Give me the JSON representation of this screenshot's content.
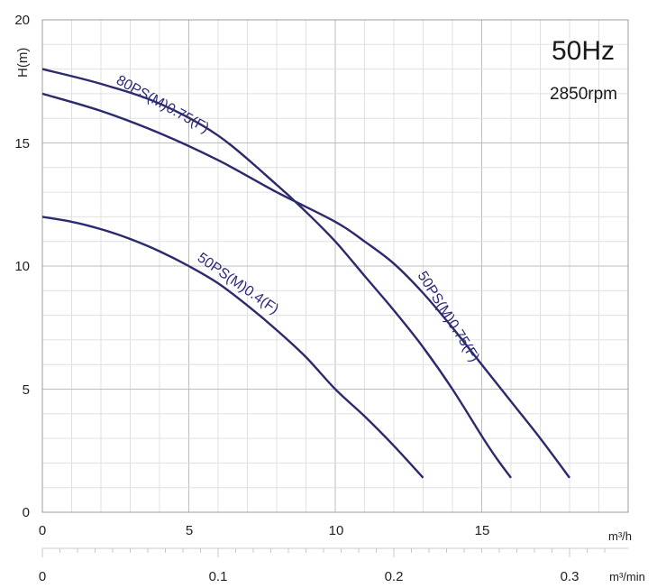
{
  "chart_data": {
    "type": "line",
    "title": "",
    "annotations": {
      "frequency": "50Hz",
      "speed": "2850rpm"
    },
    "ylabel": "H(m)",
    "xlabel_unit": "m³/h",
    "secondary_x_unit": "m³/min",
    "xlim": [
      0,
      20
    ],
    "ylim": [
      0,
      20
    ],
    "x_ticks": [
      0,
      5,
      10,
      15
    ],
    "y_ticks": [
      0,
      5,
      10,
      15,
      20
    ],
    "secondary_x_ticks": [
      {
        "value": 0,
        "label": "0"
      },
      {
        "value": 0.1,
        "label": "0.1"
      },
      {
        "value": 0.2,
        "label": "0.2"
      },
      {
        "value": 0.3,
        "label": "0.3"
      }
    ],
    "grid": true,
    "series": [
      {
        "name": "80PS(M)0.75(F)",
        "x": [
          0,
          2,
          4,
          6,
          8,
          9,
          10,
          11,
          12,
          13,
          14,
          15,
          15.5,
          16
        ],
        "y": [
          18,
          17.4,
          16.6,
          15.3,
          13.3,
          12.2,
          11.0,
          9.6,
          8.2,
          6.7,
          5.0,
          3.1,
          2.2,
          1.4
        ]
      },
      {
        "name": "50PS(M)0.75(F)",
        "x": [
          0,
          2,
          4,
          6,
          8,
          10,
          11,
          12,
          13,
          14,
          15,
          16,
          17,
          18
        ],
        "y": [
          17,
          16.3,
          15.4,
          14.3,
          13.0,
          11.8,
          11.0,
          10.1,
          8.9,
          7.5,
          6.0,
          4.5,
          3.0,
          1.4
        ]
      },
      {
        "name": "50PS(M)0.4(F)",
        "x": [
          0,
          1,
          2,
          3,
          4,
          5,
          6,
          7,
          8,
          9,
          10,
          11,
          12,
          13
        ],
        "y": [
          12,
          11.8,
          11.5,
          11.1,
          10.6,
          10.0,
          9.3,
          8.4,
          7.4,
          6.3,
          5.0,
          3.9,
          2.7,
          1.4
        ]
      }
    ]
  }
}
